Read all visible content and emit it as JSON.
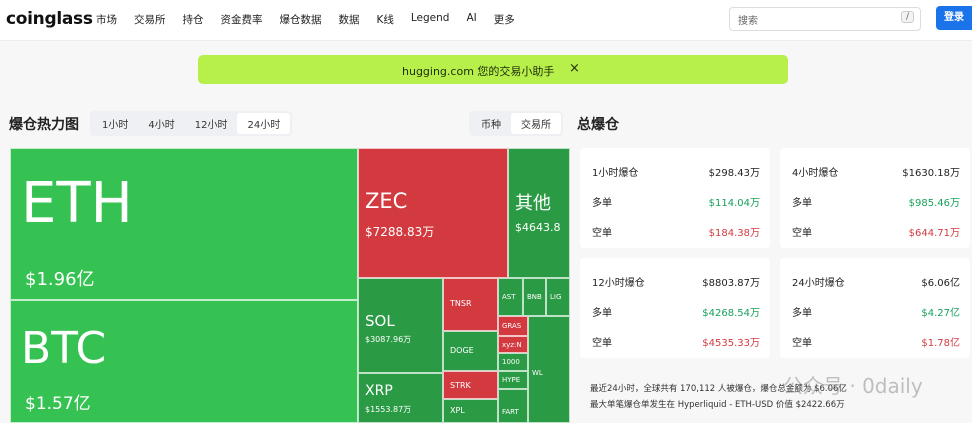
{
  "nav": {
    "logo": "coinglass",
    "menu": [
      "市场",
      "交易所",
      "持仓",
      "资金费率",
      "爆仓数据",
      "数据",
      "K线",
      "Legend",
      "AI",
      "更多"
    ],
    "search": "搜索",
    "search_key": "/",
    "login": "登录"
  },
  "banner": {
    "text": "hugging.com 您的交易小助手",
    "close": "×"
  },
  "heatmap": {
    "title": "爆仓热力图",
    "tabs": [
      "1小时",
      "4小时",
      "12小时",
      "24小时"
    ],
    "toggle": [
      "币种",
      "交易所"
    ],
    "tiles": [
      {
        "symbol": "ETH",
        "amount": "$1.96亿"
      },
      {
        "symbol": "BTC",
        "amount": "$1.57亿"
      },
      {
        "symbol": "ZEC",
        "amount": "$7288.83万"
      },
      {
        "symbol": "其他",
        "amount": "$4643.8"
      },
      {
        "symbol": "SOL",
        "amount": "$3087.96万"
      },
      {
        "symbol": "XRP",
        "amount": "$1553.87万"
      },
      {
        "symbol": "TNSR"
      },
      {
        "symbol": "DOGE"
      },
      {
        "symbol": "STRK"
      },
      {
        "symbol": "XPL"
      },
      {
        "symbol": "AST"
      },
      {
        "symbol": "BNB"
      },
      {
        "symbol": "LIG"
      },
      {
        "symbol": "GRAS"
      },
      {
        "symbol": "xyz:N"
      },
      {
        "symbol": "1000"
      },
      {
        "symbol": "HYPE"
      },
      {
        "symbol": "WL"
      },
      {
        "symbol": "FART"
      }
    ]
  },
  "summary": {
    "title": "总爆仓",
    "cards": [
      {
        "title": "1小时爆仓",
        "total": "$298.43万",
        "long_label": "多单",
        "long": "$114.04万",
        "short_label": "空单",
        "short": "$184.38万"
      },
      {
        "title": "4小时爆仓",
        "total": "$1630.18万",
        "long_label": "多单",
        "long": "$985.46万",
        "short_label": "空单",
        "short": "$644.71万"
      },
      {
        "title": "12小时爆仓",
        "total": "$8803.87万",
        "long_label": "多单",
        "long": "$4268.54万",
        "short_label": "空单",
        "short": "$4535.33万"
      },
      {
        "title": "24小时爆仓",
        "total": "$6.06亿",
        "long_label": "多单",
        "long": "$4.27亿",
        "short_label": "空单",
        "short": "$1.78亿"
      }
    ],
    "notes": [
      "最近24小时，全球共有 170,112 人被爆仓，爆仓总金额为 $6.06亿",
      "最大单笔爆仓单发生在 Hyperliquid - ETH-USD 价值 $2422.66万"
    ]
  },
  "watermark": "公众号 · 0daily"
}
